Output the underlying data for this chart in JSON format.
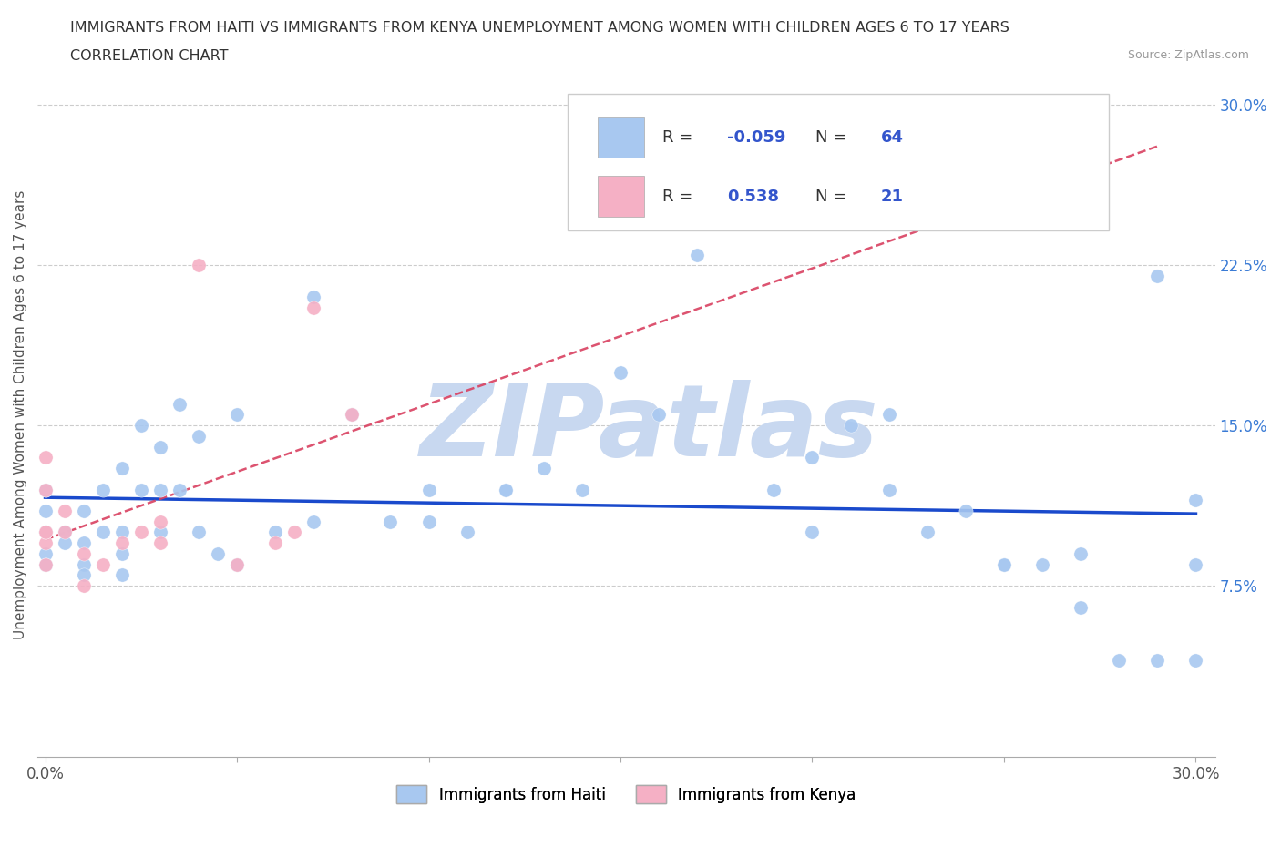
{
  "title_line1": "IMMIGRANTS FROM HAITI VS IMMIGRANTS FROM KENYA UNEMPLOYMENT AMONG WOMEN WITH CHILDREN AGES 6 TO 17 YEARS",
  "title_line2": "CORRELATION CHART",
  "source_text": "Source: ZipAtlas.com",
  "ylabel": "Unemployment Among Women with Children Ages 6 to 17 years",
  "xlim": [
    -0.002,
    0.305
  ],
  "ylim": [
    -0.005,
    0.315
  ],
  "xtick_vals": [
    0.0,
    0.05,
    0.1,
    0.15,
    0.2,
    0.25,
    0.3
  ],
  "xtick_labels": [
    "0.0%",
    "",
    "",
    "",
    "",
    "",
    "30.0%"
  ],
  "ytick_right_labels": [
    "7.5%",
    "15.0%",
    "22.5%",
    "30.0%"
  ],
  "ytick_right_values": [
    0.075,
    0.15,
    0.225,
    0.3
  ],
  "R_haiti": -0.059,
  "N_haiti": 64,
  "R_kenya": 0.538,
  "N_kenya": 21,
  "haiti_color": "#a8c8f0",
  "kenya_color": "#f5b0c5",
  "trend_haiti_color": "#1a4acc",
  "trend_kenya_color": "#d94060",
  "watermark": "ZIPatlas",
  "watermark_color": "#c8d8f0",
  "haiti_scatter_x": [
    0.0,
    0.0,
    0.0,
    0.0,
    0.0,
    0.0,
    0.005,
    0.005,
    0.01,
    0.01,
    0.01,
    0.01,
    0.015,
    0.015,
    0.02,
    0.02,
    0.02,
    0.02,
    0.025,
    0.025,
    0.03,
    0.03,
    0.03,
    0.035,
    0.035,
    0.04,
    0.04,
    0.045,
    0.05,
    0.05,
    0.06,
    0.07,
    0.07,
    0.08,
    0.09,
    0.1,
    0.1,
    0.11,
    0.12,
    0.12,
    0.13,
    0.14,
    0.15,
    0.16,
    0.17,
    0.19,
    0.2,
    0.2,
    0.21,
    0.22,
    0.22,
    0.23,
    0.24,
    0.25,
    0.25,
    0.26,
    0.27,
    0.27,
    0.28,
    0.29,
    0.29,
    0.3,
    0.3,
    0.3
  ],
  "haiti_scatter_y": [
    0.1,
    0.12,
    0.11,
    0.09,
    0.085,
    0.1,
    0.1,
    0.095,
    0.11,
    0.095,
    0.085,
    0.08,
    0.12,
    0.1,
    0.13,
    0.1,
    0.09,
    0.08,
    0.15,
    0.12,
    0.14,
    0.12,
    0.1,
    0.16,
    0.12,
    0.145,
    0.1,
    0.09,
    0.155,
    0.085,
    0.1,
    0.21,
    0.105,
    0.155,
    0.105,
    0.12,
    0.105,
    0.1,
    0.12,
    0.12,
    0.13,
    0.12,
    0.175,
    0.155,
    0.23,
    0.12,
    0.135,
    0.1,
    0.15,
    0.12,
    0.155,
    0.1,
    0.11,
    0.085,
    0.085,
    0.085,
    0.09,
    0.065,
    0.04,
    0.22,
    0.04,
    0.115,
    0.085,
    0.04
  ],
  "kenya_scatter_x": [
    0.0,
    0.0,
    0.0,
    0.0,
    0.0,
    0.0,
    0.005,
    0.005,
    0.01,
    0.01,
    0.015,
    0.02,
    0.025,
    0.03,
    0.03,
    0.04,
    0.05,
    0.06,
    0.065,
    0.07,
    0.08
  ],
  "kenya_scatter_y": [
    0.085,
    0.095,
    0.1,
    0.12,
    0.135,
    0.1,
    0.1,
    0.11,
    0.09,
    0.075,
    0.085,
    0.095,
    0.1,
    0.095,
    0.105,
    0.225,
    0.085,
    0.095,
    0.1,
    0.205,
    0.155
  ],
  "kenya_trend_x": [
    0.0,
    0.29
  ],
  "haiti_trend_x": [
    0.0,
    0.3
  ]
}
